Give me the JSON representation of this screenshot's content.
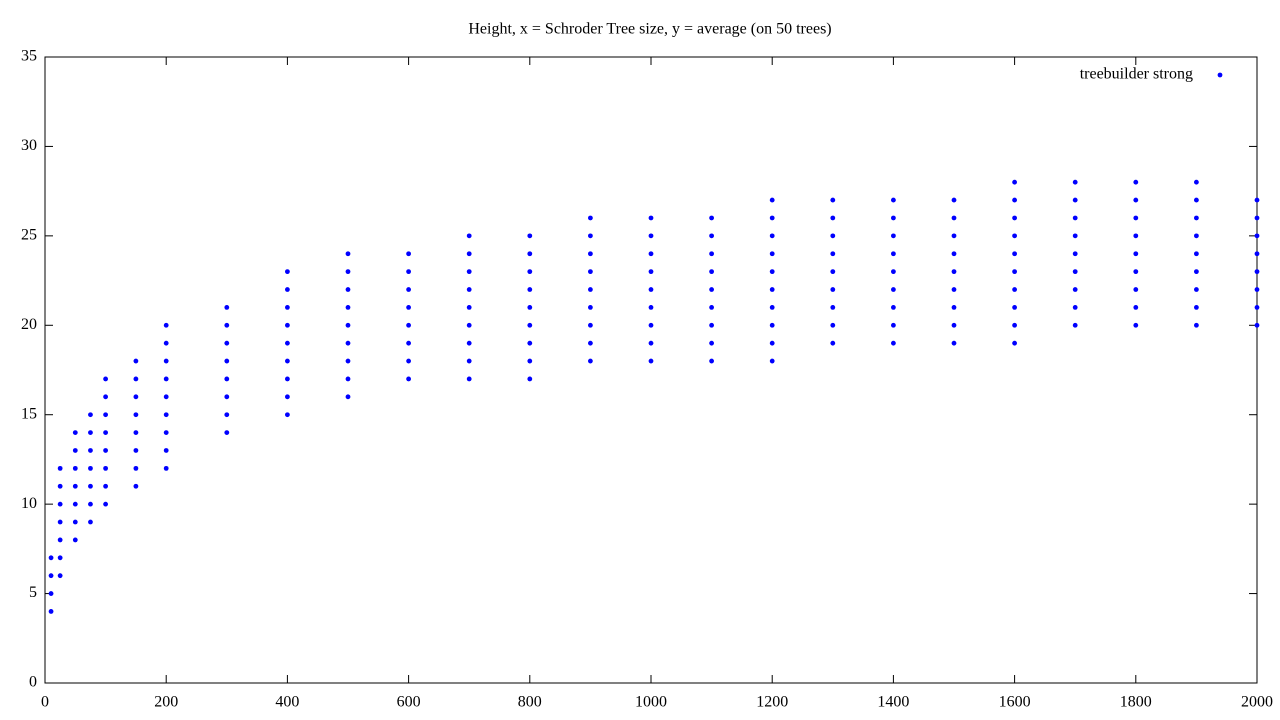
{
  "chart_data": {
    "type": "scatter",
    "title": "Height, x = Schroder Tree size, y = average (on 50 trees)",
    "xlim": [
      0,
      2000
    ],
    "xticks": [
      0,
      200,
      400,
      600,
      800,
      1000,
      1200,
      1400,
      1600,
      1800,
      2000
    ],
    "ylim": [
      0,
      35
    ],
    "yticks": [
      0,
      5,
      10,
      15,
      20,
      25,
      30,
      35
    ],
    "grid": false,
    "legend": "top-right",
    "series": [
      {
        "name": "treebuilder strong",
        "color": "#0000ff",
        "x": [
          10,
          10,
          10,
          10,
          25,
          25,
          25,
          25,
          25,
          25,
          25,
          50,
          50,
          50,
          50,
          50,
          50,
          50,
          75,
          75,
          75,
          75,
          75,
          75,
          75,
          100,
          100,
          100,
          100,
          100,
          100,
          100,
          100,
          150,
          150,
          150,
          150,
          150,
          150,
          150,
          150,
          200,
          200,
          200,
          200,
          200,
          200,
          200,
          200,
          200,
          300,
          300,
          300,
          300,
          300,
          300,
          300,
          300,
          400,
          400,
          400,
          400,
          400,
          400,
          400,
          400,
          400,
          500,
          500,
          500,
          500,
          500,
          500,
          500,
          500,
          500,
          600,
          600,
          600,
          600,
          600,
          600,
          600,
          600,
          700,
          700,
          700,
          700,
          700,
          700,
          700,
          700,
          700,
          800,
          800,
          800,
          800,
          800,
          800,
          800,
          800,
          800,
          900,
          900,
          900,
          900,
          900,
          900,
          900,
          900,
          900,
          1000,
          1000,
          1000,
          1000,
          1000,
          1000,
          1000,
          1000,
          1000,
          1100,
          1100,
          1100,
          1100,
          1100,
          1100,
          1100,
          1100,
          1100,
          1200,
          1200,
          1200,
          1200,
          1200,
          1200,
          1200,
          1200,
          1200,
          1200,
          1300,
          1300,
          1300,
          1300,
          1300,
          1300,
          1300,
          1300,
          1300,
          1400,
          1400,
          1400,
          1400,
          1400,
          1400,
          1400,
          1400,
          1400,
          1500,
          1500,
          1500,
          1500,
          1500,
          1500,
          1500,
          1500,
          1500,
          1600,
          1600,
          1600,
          1600,
          1600,
          1600,
          1600,
          1600,
          1600,
          1600,
          1700,
          1700,
          1700,
          1700,
          1700,
          1700,
          1700,
          1700,
          1700,
          1800,
          1800,
          1800,
          1800,
          1800,
          1800,
          1800,
          1800,
          1800,
          1900,
          1900,
          1900,
          1900,
          1900,
          1900,
          1900,
          1900,
          1900,
          2000,
          2000,
          2000,
          2000,
          2000,
          2000,
          2000,
          2000
        ],
        "values": [
          4,
          5,
          6,
          7,
          6,
          7,
          8,
          9,
          10,
          11,
          12,
          8,
          9,
          10,
          11,
          12,
          13,
          14,
          9,
          10,
          11,
          12,
          13,
          14,
          15,
          10,
          11,
          12,
          13,
          14,
          15,
          16,
          17,
          11,
          12,
          13,
          14,
          15,
          16,
          17,
          18,
          12,
          13,
          14,
          15,
          16,
          17,
          18,
          19,
          20,
          14,
          15,
          16,
          17,
          18,
          19,
          20,
          21,
          15,
          16,
          17,
          18,
          19,
          20,
          21,
          22,
          23,
          16,
          17,
          18,
          19,
          20,
          21,
          22,
          23,
          24,
          17,
          18,
          19,
          20,
          21,
          22,
          23,
          24,
          17,
          18,
          19,
          20,
          21,
          22,
          23,
          24,
          25,
          17,
          18,
          19,
          20,
          21,
          22,
          23,
          24,
          25,
          18,
          19,
          20,
          21,
          22,
          23,
          24,
          25,
          26,
          18,
          19,
          20,
          21,
          22,
          23,
          24,
          25,
          26,
          18,
          19,
          20,
          21,
          22,
          23,
          24,
          25,
          26,
          18,
          19,
          20,
          21,
          22,
          23,
          24,
          25,
          26,
          27,
          19,
          20,
          21,
          22,
          23,
          24,
          25,
          26,
          27,
          19,
          20,
          21,
          22,
          23,
          24,
          25,
          26,
          27,
          19,
          20,
          21,
          22,
          23,
          24,
          25,
          26,
          27,
          19,
          20,
          21,
          22,
          23,
          24,
          25,
          26,
          27,
          28,
          20,
          21,
          22,
          23,
          24,
          25,
          26,
          27,
          28,
          20,
          21,
          22,
          23,
          24,
          25,
          26,
          27,
          28,
          20,
          21,
          22,
          23,
          24,
          25,
          26,
          27,
          28,
          20,
          21,
          22,
          23,
          24,
          25,
          26,
          27
        ]
      }
    ]
  }
}
